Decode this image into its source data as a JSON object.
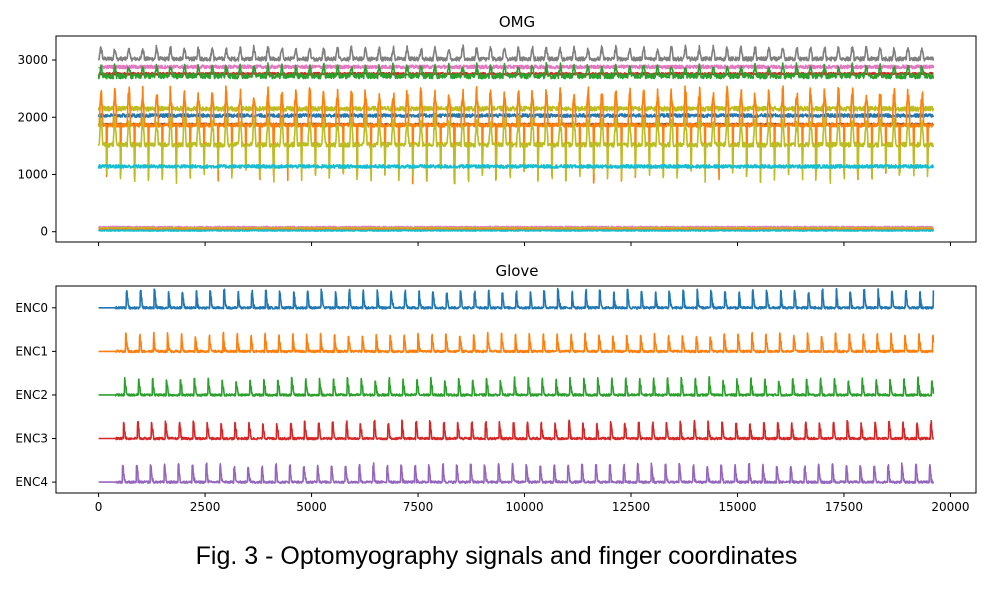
{
  "caption": "Fig. 3 - Optomyography signals and finger coordinates",
  "chart_data": [
    {
      "type": "line",
      "title": "OMG",
      "xlim": [
        -1000,
        20600
      ],
      "ylim": [
        -180,
        3420
      ],
      "x_ticks": [
        0,
        2500,
        5000,
        7500,
        10000,
        12500,
        15000,
        17500,
        20000
      ],
      "x_tick_labels_shown": false,
      "y_ticks": [
        0,
        1000,
        2000,
        3000
      ],
      "y_tick_labels": [
        "0",
        "1000",
        "2000",
        "3000"
      ],
      "x_range": [
        0,
        19600
      ],
      "n_periods": 60,
      "series": [
        {
          "color": "#7f7f7f",
          "base": 3020,
          "noise": 35,
          "peak": 220,
          "spike": 0
        },
        {
          "color": "#e377c2",
          "base": 2880,
          "noise": 30,
          "peak": 0,
          "spike": 0
        },
        {
          "color": "#d62728",
          "base": 2760,
          "noise": 20,
          "peak": 0,
          "spike": 0
        },
        {
          "color": "#2ca02c",
          "base": 2720,
          "noise": 45,
          "peak": 200,
          "spike": 0
        },
        {
          "color": "#bcbd22",
          "base": 2150,
          "noise": 40,
          "peak": 150,
          "spike": 0
        },
        {
          "color": "#1f77b4",
          "base": 2030,
          "noise": 30,
          "peak": 0,
          "spike": 0
        },
        {
          "color": "#8c564b",
          "base": 1880,
          "noise": 15,
          "peak": 0,
          "spike": 0
        },
        {
          "color": "#ff7f0e",
          "base": 1860,
          "noise": 30,
          "peak": 700,
          "spike": -1000
        },
        {
          "color": "#bcbd22",
          "base": 1520,
          "noise": 40,
          "peak": 500,
          "spike": -650
        },
        {
          "color": "#17becf",
          "base": 1140,
          "noise": 30,
          "peak": 0,
          "spike": 0
        },
        {
          "color": "#e377c2",
          "base": 80,
          "noise": 12,
          "peak": 0,
          "spike": 0
        },
        {
          "color": "#bcbd22",
          "base": 60,
          "noise": 12,
          "peak": 0,
          "spike": 0
        },
        {
          "color": "#ff7f0e",
          "base": 40,
          "noise": 10,
          "peak": 0,
          "spike": 0
        },
        {
          "color": "#17becf",
          "base": 20,
          "noise": 10,
          "peak": 0,
          "spike": 0
        }
      ]
    },
    {
      "type": "line",
      "title": "Glove",
      "xlim": [
        -1000,
        20600
      ],
      "ylim": [
        -0.25,
        4.5
      ],
      "x_ticks": [
        0,
        2500,
        5000,
        7500,
        10000,
        12500,
        15000,
        17500,
        20000
      ],
      "x_tick_labels": [
        "0",
        "2500",
        "5000",
        "7500",
        "10000",
        "12500",
        "15000",
        "17500",
        "20000"
      ],
      "y_ticks": [
        0,
        1,
        2,
        3,
        4
      ],
      "y_tick_labels": [
        "ENC4",
        "ENC3",
        "ENC2",
        "ENC1",
        "ENC0"
      ],
      "x_range": [
        0,
        19600
      ],
      "n_periods": 60,
      "series": [
        {
          "name": "ENC0",
          "color": "#1f77b4",
          "level": 4,
          "amp": 0.42
        },
        {
          "name": "ENC1",
          "color": "#ff7f0e",
          "level": 3,
          "amp": 0.42
        },
        {
          "name": "ENC2",
          "color": "#2ca02c",
          "level": 2,
          "amp": 0.4
        },
        {
          "name": "ENC3",
          "color": "#d62728",
          "level": 1,
          "amp": 0.4
        },
        {
          "name": "ENC4",
          "color": "#9467bd",
          "level": 0,
          "amp": 0.42
        }
      ]
    }
  ]
}
